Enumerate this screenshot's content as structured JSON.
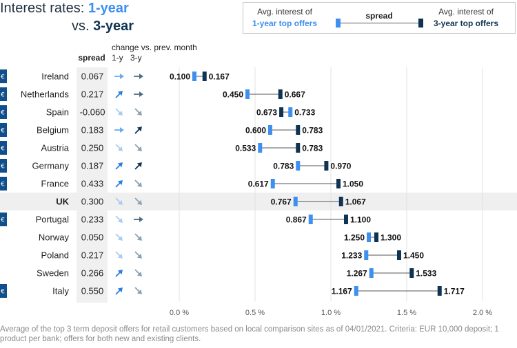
{
  "title": {
    "line1_prefix": "Interest rates: ",
    "line1_highlight": "1-year",
    "line2_prefix": "vs. ",
    "line2_highlight": "3-year"
  },
  "legend": {
    "left_line1": "Avg. interest of",
    "left_line2": "1-year top offers",
    "center": "spread",
    "right_line1": "Avg. interest of",
    "right_line2": "3-year top offers"
  },
  "headers": {
    "spread": "spread",
    "change": "change vs. prev. month",
    "one_y": "1-y",
    "three_y": "3-y"
  },
  "euro_symbol": "€",
  "colors": {
    "one_year": "#3d8ff0",
    "three_year": "#0f3352",
    "arrow_up_1y": "#2a7de1",
    "arrow_up_3y": "#0f3352",
    "arrow_down_1y": "#a8cdf0",
    "arrow_down_3y": "#8aa1b4",
    "arrow_flat_1y": "#6aaaf0",
    "arrow_flat_3y": "#4f6b82",
    "highlight_row": "#efefef",
    "grid": "#e2e2e2",
    "euro_badge": "#0f4f8b"
  },
  "chart_data": {
    "type": "dumbbell",
    "x_axis_ticks": [
      "0.0 %",
      "0.5 %",
      "1.0 %",
      "1.5 %",
      "2.0 %"
    ],
    "xlim": [
      0,
      2.0
    ],
    "rows": [
      {
        "country": "Ireland",
        "euro": true,
        "spread": "0.067",
        "change_1y": "flat",
        "change_3y": "flat",
        "rate_1y": 0.1,
        "rate_3y": 0.167,
        "label_1y": "0.100",
        "label_3y": "0.167"
      },
      {
        "country": "Netherlands",
        "euro": true,
        "spread": "0.217",
        "change_1y": "up",
        "change_3y": "flat",
        "rate_1y": 0.45,
        "rate_3y": 0.667,
        "label_1y": "0.450",
        "label_3y": "0.667"
      },
      {
        "country": "Spain",
        "euro": true,
        "spread": "-0.060",
        "change_1y": "down",
        "change_3y": "down",
        "rate_1y": 0.733,
        "rate_3y": 0.673,
        "label_1y": "0.733",
        "label_3y": "0.673"
      },
      {
        "country": "Belgium",
        "euro": true,
        "spread": "0.183",
        "change_1y": "flat",
        "change_3y": "up",
        "rate_1y": 0.6,
        "rate_3y": 0.783,
        "label_1y": "0.600",
        "label_3y": "0.783"
      },
      {
        "country": "Austria",
        "euro": true,
        "spread": "0.250",
        "change_1y": "down",
        "change_3y": "down",
        "rate_1y": 0.533,
        "rate_3y": 0.783,
        "label_1y": "0.533",
        "label_3y": "0.783"
      },
      {
        "country": "Germany",
        "euro": true,
        "spread": "0.187",
        "change_1y": "up",
        "change_3y": "up",
        "rate_1y": 0.783,
        "rate_3y": 0.97,
        "label_1y": "0.783",
        "label_3y": "0.970"
      },
      {
        "country": "France",
        "euro": true,
        "spread": "0.433",
        "change_1y": "up",
        "change_3y": "down",
        "rate_1y": 0.617,
        "rate_3y": 1.05,
        "label_1y": "0.617",
        "label_3y": "1.050"
      },
      {
        "country": "UK",
        "euro": false,
        "highlight": true,
        "spread": "0.300",
        "change_1y": "down",
        "change_3y": "down",
        "rate_1y": 0.767,
        "rate_3y": 1.067,
        "label_1y": "0.767",
        "label_3y": "1.067"
      },
      {
        "country": "Portugal",
        "euro": true,
        "spread": "0.233",
        "change_1y": "down",
        "change_3y": "flat",
        "rate_1y": 0.867,
        "rate_3y": 1.1,
        "label_1y": "0.867",
        "label_3y": "1.100"
      },
      {
        "country": "Norway",
        "euro": false,
        "spread": "0.050",
        "change_1y": "down",
        "change_3y": "down",
        "rate_1y": 1.25,
        "rate_3y": 1.3,
        "label_1y": "1.250",
        "label_3y": "1.300"
      },
      {
        "country": "Poland",
        "euro": false,
        "spread": "0.217",
        "change_1y": "down",
        "change_3y": "down",
        "rate_1y": 1.233,
        "rate_3y": 1.45,
        "label_1y": "1.233",
        "label_3y": "1.450"
      },
      {
        "country": "Sweden",
        "euro": false,
        "spread": "0.266",
        "change_1y": "up",
        "change_3y": "down",
        "rate_1y": 1.267,
        "rate_3y": 1.533,
        "label_1y": "1.267",
        "label_3y": "1.533"
      },
      {
        "country": "Italy",
        "euro": true,
        "spread": "0.550",
        "change_1y": "up",
        "change_3y": "down",
        "rate_1y": 1.167,
        "rate_3y": 1.717,
        "label_1y": "1.167",
        "label_3y": "1.717"
      }
    ]
  },
  "footnote": "Average of the top 3 term deposit offers for retail customers based on local comparison sites as of 04/01/2021. Criteria: EUR 10,000 deposit; 1 product per bank; offers for both new and existing clients."
}
